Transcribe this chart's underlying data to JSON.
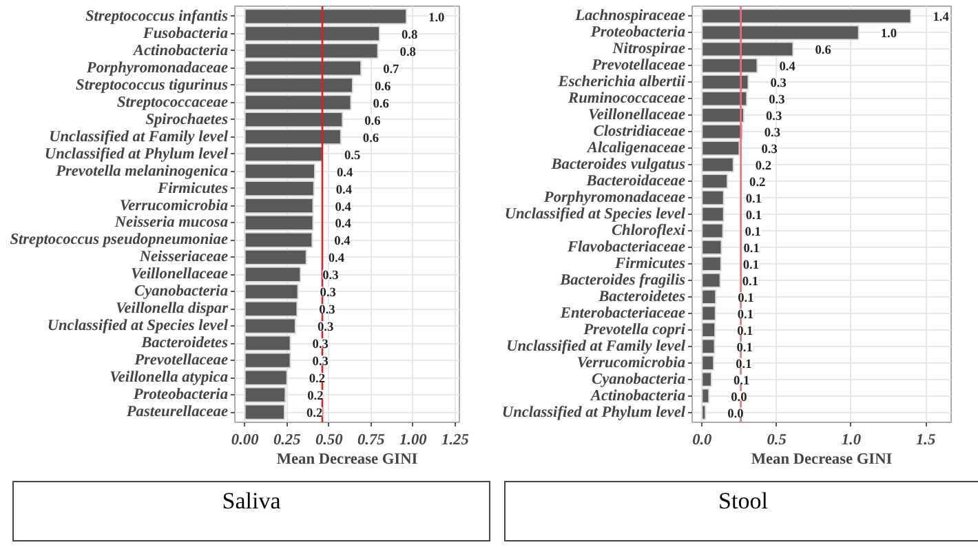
{
  "chart_data": [
    {
      "type": "bar",
      "orientation": "horizontal",
      "xlabel": "Mean Decrease GINI",
      "annotations": [
        "Saliva"
      ],
      "grid": true,
      "categories": [
        "Streptococcus infantis",
        "Fusobacteria",
        "Actinobacteria",
        "Porphyromonadaceae",
        "Streptococcus tigurinus",
        "Streptococcaceae",
        "Spirochaetes",
        "Unclassified at Family level",
        "Unclassified at Phylum level",
        "Prevotella melaninogenica",
        "Firmicutes",
        "Verrucomicrobia",
        "Neisseria mucosa",
        "Streptococcus pseudopneumoniae",
        "Neisseriaceae",
        "Veillonellaceae",
        "Cyanobacteria",
        "Veillonella dispar",
        "Unclassified at Species level",
        "Bacteroidetes",
        "Prevotellaceae",
        "Veillonella atypica",
        "Proteobacteria",
        "Pasteurellaceae"
      ],
      "values": [
        0.96,
        0.8,
        0.79,
        0.69,
        0.64,
        0.63,
        0.58,
        0.57,
        0.46,
        0.415,
        0.41,
        0.405,
        0.405,
        0.4,
        0.365,
        0.33,
        0.315,
        0.31,
        0.3,
        0.27,
        0.27,
        0.25,
        0.24,
        0.235
      ],
      "value_labels": [
        "1.0",
        "0.8",
        "0.8",
        "0.7",
        "0.6",
        "0.6",
        "0.6",
        "0.6",
        "0.5",
        "0.4",
        "0.4",
        "0.4",
        "0.4",
        "0.4",
        "0.4",
        "0.3",
        "0.3",
        "0.3",
        "0.3",
        "0.3",
        "0.3",
        "0.2",
        "0.2",
        "0.2"
      ],
      "color": "#595959",
      "xlim": [
        -0.06,
        1.275
      ],
      "xticks": [
        {
          "value": 0,
          "label": "0.00"
        },
        0.25,
        {
          "value": 0.5,
          "label": "0.50"
        },
        0.75,
        {
          "value": 1,
          "label": "1.00"
        },
        1.25
      ],
      "ref_lines": [
        {
          "axis": "x",
          "value": 0.46,
          "label": null,
          "color": "#e02020"
        }
      ]
    },
    {
      "type": "bar",
      "orientation": "horizontal",
      "xlabel": "Mean Decrease GINI",
      "annotations": [
        "Stool"
      ],
      "grid": true,
      "categories": [
        "Lachnospiraceae",
        "Proteobacteria",
        "Nitrospirae",
        "Prevotellaceae",
        "Escherichia albertii",
        "Ruminococcaceae",
        "Veillonellaceae",
        "Clostridiaceae",
        "Alcaligenaceae",
        "Bacteroides vulgatus",
        "Bacteroidaceae",
        "Porphyromonadaceae",
        "Unclassified at Species level",
        "Chloroflexi",
        "Flavobacteriaceae",
        "Firmicutes",
        "Bacteroides fragilis",
        "Bacteroidetes",
        "Enterobacteriaceae",
        "Prevotella copri",
        "Unclassified at Family level",
        "Verrucomicrobia",
        "Cyanobacteria",
        "Actinobacteria",
        "Unclassified at Phylum level"
      ],
      "values": [
        1.4,
        1.05,
        0.61,
        0.37,
        0.31,
        0.3,
        0.28,
        0.27,
        0.25,
        0.21,
        0.17,
        0.145,
        0.145,
        0.14,
        0.13,
        0.127,
        0.122,
        0.092,
        0.09,
        0.087,
        0.084,
        0.078,
        0.063,
        0.046,
        0.023
      ],
      "value_labels": [
        "1.4",
        "1.0",
        "0.6",
        "0.4",
        "0.3",
        "0.3",
        "0.3",
        "0.3",
        "0.3",
        "0.2",
        "0.2",
        "0.1",
        "0.1",
        "0.1",
        "0.1",
        "0.1",
        "0.1",
        "0.1",
        "0.1",
        "0.1",
        "0.1",
        "0.1",
        "0.1",
        "0.0",
        "0.0"
      ],
      "color": "#595959",
      "xlim": [
        -0.066,
        1.67
      ],
      "xticks": [
        {
          "value": 0,
          "label": "0.0"
        },
        0.5,
        {
          "value": 1,
          "label": "1.0"
        },
        1.5
      ],
      "ref_lines": [
        {
          "axis": "x",
          "value": 0.26,
          "label": null,
          "color": "#f07070"
        }
      ]
    }
  ]
}
